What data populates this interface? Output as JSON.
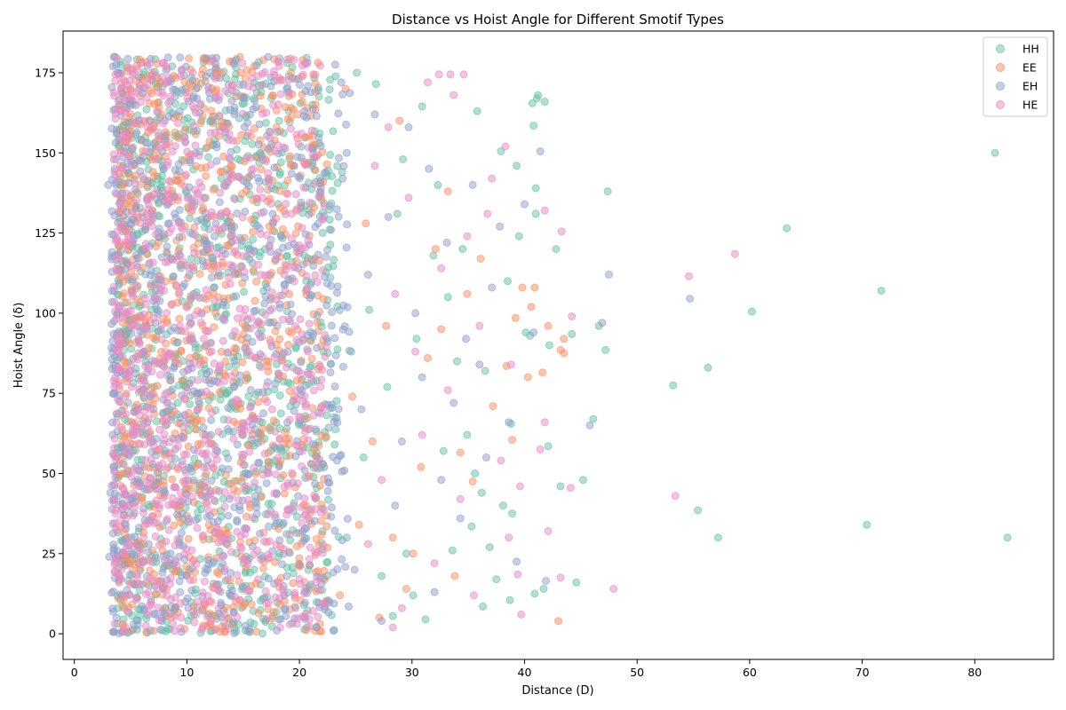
{
  "chart_data": {
    "type": "scatter",
    "title": "Distance vs Hoist Angle for Different Smotif Types",
    "xlabel": "Distance (D)",
    "ylabel": "Hoist Angle (δ)",
    "xlim": [
      -1,
      87
    ],
    "ylim": [
      -8,
      188
    ],
    "xticks": [
      0,
      10,
      20,
      30,
      40,
      50,
      60,
      70,
      80
    ],
    "yticks": [
      0,
      25,
      50,
      75,
      100,
      125,
      150,
      175
    ],
    "xtick_labels": [
      "0",
      "10",
      "20",
      "30",
      "40",
      "50",
      "60",
      "70",
      "80"
    ],
    "ytick_labels": [
      "0",
      "25",
      "50",
      "75",
      "100",
      "125",
      "150",
      "175"
    ],
    "grid": false,
    "legend_position": "top-right",
    "marker_alpha": 0.5,
    "series": [
      {
        "name": "HH",
        "color": "#66c2a5",
        "points": [
          [
            81.8,
            150
          ],
          [
            82.9,
            30
          ],
          [
            70.4,
            34
          ],
          [
            71.7,
            107
          ],
          [
            63.3,
            126.5
          ],
          [
            60.2,
            100.5
          ],
          [
            57.2,
            30
          ],
          [
            56.3,
            83
          ],
          [
            55.4,
            38.5
          ],
          [
            53.2,
            77.5
          ],
          [
            47.4,
            138
          ],
          [
            47.2,
            88.5
          ],
          [
            46.1,
            67
          ],
          [
            46.6,
            96
          ],
          [
            45.2,
            48
          ],
          [
            44.6,
            16
          ],
          [
            44.2,
            93.5
          ],
          [
            43.2,
            46
          ],
          [
            42.8,
            120
          ],
          [
            42.2,
            90
          ],
          [
            42.1,
            58.5
          ],
          [
            41.8,
            166
          ],
          [
            41.7,
            14
          ],
          [
            41.2,
            168
          ],
          [
            41.1,
            167
          ],
          [
            41.0,
            139
          ],
          [
            41.0,
            131
          ],
          [
            40.8,
            158.5
          ],
          [
            40.9,
            12.5
          ],
          [
            40.7,
            165.5
          ],
          [
            40.5,
            93
          ],
          [
            40.1,
            94
          ],
          [
            39.5,
            124
          ],
          [
            39.3,
            146
          ],
          [
            38.9,
            37.5
          ],
          [
            38.8,
            65.5
          ],
          [
            38.7,
            10.5
          ],
          [
            38.5,
            110
          ],
          [
            38.1,
            40
          ],
          [
            37.9,
            150.5
          ],
          [
            37.5,
            17
          ],
          [
            36.9,
            27
          ],
          [
            36.3,
            8.5
          ],
          [
            36.2,
            44
          ],
          [
            36.5,
            82
          ],
          [
            35.8,
            163
          ],
          [
            35.6,
            50
          ],
          [
            35.3,
            33.5
          ],
          [
            34.9,
            62
          ],
          [
            34.5,
            120
          ],
          [
            34.0,
            85
          ],
          [
            33.6,
            26
          ],
          [
            33.2,
            105
          ],
          [
            32.8,
            57
          ],
          [
            32.3,
            140
          ],
          [
            31.9,
            118
          ],
          [
            31.2,
            4.5
          ],
          [
            30.9,
            164.5
          ],
          [
            30.4,
            92
          ],
          [
            30.1,
            12
          ],
          [
            29.5,
            25
          ],
          [
            29.2,
            148
          ],
          [
            28.7,
            131
          ],
          [
            28.3,
            5.5
          ],
          [
            27.8,
            77
          ],
          [
            27.3,
            18
          ],
          [
            26.8,
            171.5
          ],
          [
            26.2,
            101
          ],
          [
            25.7,
            55
          ],
          [
            25.1,
            175
          ],
          [
            24.6,
            88
          ],
          [
            24.2,
            30
          ],
          [
            23.8,
            144
          ],
          [
            15.6,
            0.5
          ],
          [
            18.2,
            160
          ]
        ],
        "cluster_region": {
          "x": [
            3.8,
            23.5
          ],
          "y": [
            0,
            180
          ]
        }
      },
      {
        "name": "EE",
        "color": "#fc8d62",
        "points": [
          [
            43.5,
            87.5
          ],
          [
            43.2,
            88.5
          ],
          [
            43.0,
            4
          ],
          [
            43.5,
            92
          ],
          [
            42.1,
            96
          ],
          [
            41.6,
            81.5
          ],
          [
            40.9,
            108
          ],
          [
            40.6,
            102
          ],
          [
            40.3,
            80
          ],
          [
            39.8,
            108
          ],
          [
            39.2,
            98.5
          ],
          [
            38.9,
            60.5
          ],
          [
            38.4,
            83.5
          ],
          [
            37.2,
            71
          ],
          [
            36.1,
            117
          ],
          [
            35.4,
            47.5
          ],
          [
            34.9,
            106
          ],
          [
            34.3,
            56.5
          ],
          [
            33.8,
            18
          ],
          [
            33.2,
            138
          ],
          [
            32.6,
            95
          ],
          [
            32.1,
            120
          ],
          [
            31.4,
            86
          ],
          [
            30.8,
            52
          ],
          [
            30.1,
            25
          ],
          [
            29.5,
            14
          ],
          [
            28.9,
            160
          ],
          [
            28.3,
            30
          ],
          [
            27.7,
            96
          ],
          [
            27.1,
            5
          ],
          [
            26.5,
            60
          ],
          [
            25.9,
            128
          ],
          [
            25.3,
            34
          ],
          [
            24.7,
            74
          ],
          [
            24.1,
            170
          ],
          [
            23.6,
            12
          ],
          [
            6.4,
            0.5
          ],
          [
            9.8,
            1.5
          ],
          [
            5.1,
            1
          ],
          [
            13.8,
            178.5
          ]
        ],
        "cluster_region": {
          "x": [
            3.9,
            22.5
          ],
          "y": [
            0,
            180
          ]
        }
      },
      {
        "name": "EH",
        "color": "#8da0cb",
        "points": [
          [
            54.7,
            104.5
          ],
          [
            47.5,
            112
          ],
          [
            46.9,
            97
          ],
          [
            45.8,
            65
          ],
          [
            41.9,
            16.5
          ],
          [
            41.4,
            150.5
          ],
          [
            40.8,
            94
          ],
          [
            40.0,
            134
          ],
          [
            39.3,
            22.5
          ],
          [
            38.6,
            66
          ],
          [
            37.8,
            127
          ],
          [
            37.1,
            108
          ],
          [
            36.6,
            55
          ],
          [
            36.0,
            84
          ],
          [
            35.4,
            140
          ],
          [
            34.8,
            92
          ],
          [
            34.3,
            36
          ],
          [
            33.7,
            72
          ],
          [
            33.1,
            122
          ],
          [
            32.6,
            48
          ],
          [
            32.0,
            13
          ],
          [
            31.5,
            145
          ],
          [
            30.9,
            80
          ],
          [
            30.3,
            100
          ],
          [
            29.7,
            158
          ],
          [
            29.1,
            60
          ],
          [
            28.5,
            40
          ],
          [
            27.9,
            130
          ],
          [
            27.3,
            4
          ],
          [
            26.7,
            162
          ],
          [
            26.1,
            112
          ],
          [
            25.5,
            70
          ],
          [
            24.9,
            20
          ],
          [
            24.2,
            150
          ],
          [
            3.0,
            140
          ],
          [
            3.1,
            24
          ],
          [
            3.2,
            44
          ],
          [
            3.6,
            180
          ],
          [
            21.5,
            2
          ],
          [
            18.0,
            1
          ]
        ],
        "cluster_region": {
          "x": [
            3.3,
            24.5
          ],
          "y": [
            0,
            180
          ]
        }
      },
      {
        "name": "HE",
        "color": "#e78ac3",
        "points": [
          [
            58.7,
            118.5
          ],
          [
            54.6,
            111.5
          ],
          [
            53.4,
            43
          ],
          [
            47.9,
            14
          ],
          [
            44.2,
            99
          ],
          [
            44.1,
            45.5
          ],
          [
            43.3,
            125.5
          ],
          [
            43.2,
            17.5
          ],
          [
            42.1,
            32
          ],
          [
            41.8,
            132
          ],
          [
            41.8,
            66
          ],
          [
            41.4,
            57.5
          ],
          [
            39.7,
            6
          ],
          [
            39.6,
            46
          ],
          [
            39.4,
            18.5
          ],
          [
            38.8,
            84
          ],
          [
            38.6,
            30
          ],
          [
            38.3,
            152
          ],
          [
            37.9,
            54
          ],
          [
            37.1,
            142
          ],
          [
            36.7,
            131
          ],
          [
            36.0,
            96
          ],
          [
            35.5,
            12
          ],
          [
            34.9,
            124
          ],
          [
            34.3,
            42
          ],
          [
            33.7,
            168
          ],
          [
            33.2,
            76
          ],
          [
            32.6,
            114
          ],
          [
            32.0,
            22
          ],
          [
            31.4,
            172
          ],
          [
            30.9,
            62
          ],
          [
            30.3,
            88
          ],
          [
            29.7,
            136
          ],
          [
            29.1,
            8
          ],
          [
            28.5,
            106
          ],
          [
            28.3,
            2
          ],
          [
            27.9,
            158
          ],
          [
            27.3,
            48
          ],
          [
            26.7,
            146
          ],
          [
            26.1,
            28
          ],
          [
            33.4,
            174.5
          ],
          [
            34.6,
            174.5
          ],
          [
            32.4,
            174.5
          ],
          [
            20.5,
            178
          ],
          [
            19.5,
            179
          ]
        ],
        "cluster_region": {
          "x": [
            3.5,
            22.5
          ],
          "y": [
            0,
            180
          ]
        }
      }
    ]
  }
}
